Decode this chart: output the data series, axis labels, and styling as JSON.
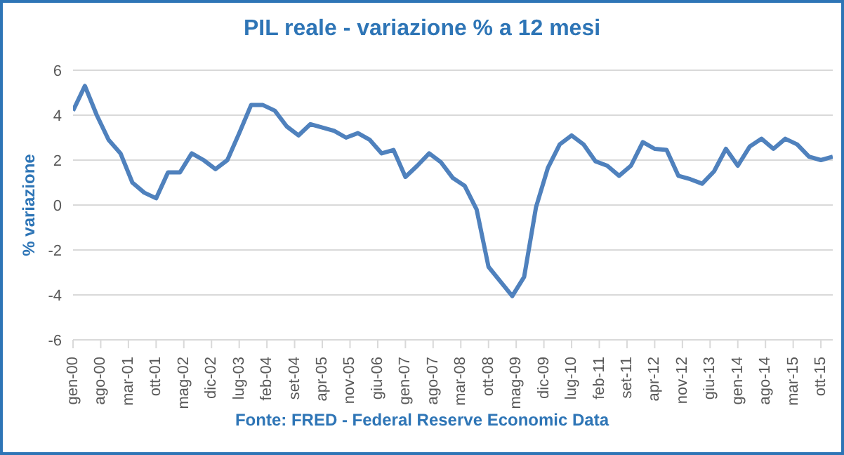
{
  "chart_data": {
    "type": "line",
    "title": "PIL reale - variazione % a 12 mesi",
    "ylabel": "% variazione",
    "annotations": [
      "Fonte: FRED  - Federal Reserve Economic  Data"
    ],
    "x": [
      "2000-01",
      "2000-04",
      "2000-07",
      "2000-10",
      "2001-01",
      "2001-04",
      "2001-07",
      "2001-10",
      "2002-01",
      "2002-04",
      "2002-07",
      "2002-10",
      "2003-01",
      "2003-04",
      "2003-07",
      "2003-10",
      "2004-01",
      "2004-04",
      "2004-07",
      "2004-10",
      "2005-01",
      "2005-04",
      "2005-07",
      "2005-10",
      "2006-01",
      "2006-04",
      "2006-07",
      "2006-10",
      "2007-01",
      "2007-04",
      "2007-07",
      "2007-10",
      "2008-01",
      "2008-04",
      "2008-07",
      "2008-10",
      "2009-01",
      "2009-04",
      "2009-07",
      "2009-10",
      "2010-01",
      "2010-04",
      "2010-07",
      "2010-10",
      "2011-01",
      "2011-04",
      "2011-07",
      "2011-10",
      "2012-01",
      "2012-04",
      "2012-07",
      "2012-10",
      "2013-01",
      "2013-04",
      "2013-07",
      "2013-10",
      "2014-01",
      "2014-04",
      "2014-07",
      "2014-10",
      "2015-01",
      "2015-04",
      "2015-07",
      "2015-10",
      "2016-01"
    ],
    "series": [
      {
        "color": "#4f81bd",
        "values": [
          4.2,
          5.3,
          4.0,
          2.9,
          2.3,
          1.0,
          0.55,
          0.3,
          1.45,
          1.45,
          2.3,
          2.0,
          1.6,
          2.0,
          3.2,
          4.45,
          4.45,
          4.2,
          3.5,
          3.1,
          3.6,
          3.45,
          3.3,
          3.0,
          3.2,
          2.9,
          2.3,
          2.45,
          1.25,
          1.75,
          2.3,
          1.9,
          1.2,
          0.85,
          -0.2,
          -2.75,
          -3.4,
          -4.05,
          -3.2,
          -0.1,
          1.65,
          2.7,
          3.1,
          2.7,
          1.95,
          1.75,
          1.3,
          1.75,
          2.8,
          2.5,
          2.45,
          1.3,
          1.15,
          0.95,
          1.5,
          2.5,
          1.75,
          2.6,
          2.95,
          2.5,
          2.95,
          2.7,
          2.15,
          2.0,
          2.15
        ]
      }
    ],
    "xlim": [
      "2000-01",
      "2016-01"
    ],
    "xticks": [
      {
        "value": "2000-01",
        "label": "gen-00"
      },
      {
        "value": "2000-08",
        "label": "ago-00"
      },
      {
        "value": "2001-03",
        "label": "mar-01"
      },
      {
        "value": "2001-10",
        "label": "ott-01"
      },
      {
        "value": "2002-05",
        "label": "mag-02"
      },
      {
        "value": "2002-12",
        "label": "dic-02"
      },
      {
        "value": "2003-07",
        "label": "lug-03"
      },
      {
        "value": "2004-02",
        "label": "feb-04"
      },
      {
        "value": "2004-09",
        "label": "set-04"
      },
      {
        "value": "2005-04",
        "label": "apr-05"
      },
      {
        "value": "2005-11",
        "label": "nov-05"
      },
      {
        "value": "2006-06",
        "label": "giu-06"
      },
      {
        "value": "2007-01",
        "label": "gen-07"
      },
      {
        "value": "2007-08",
        "label": "ago-07"
      },
      {
        "value": "2008-03",
        "label": "mar-08"
      },
      {
        "value": "2008-10",
        "label": "ott-08"
      },
      {
        "value": "2009-05",
        "label": "mag-09"
      },
      {
        "value": "2009-12",
        "label": "dic-09"
      },
      {
        "value": "2010-07",
        "label": "lug-10"
      },
      {
        "value": "2011-02",
        "label": "feb-11"
      },
      {
        "value": "2011-09",
        "label": "set-11"
      },
      {
        "value": "2012-04",
        "label": "apr-12"
      },
      {
        "value": "2012-11",
        "label": "nov-12"
      },
      {
        "value": "2013-06",
        "label": "giu-13"
      },
      {
        "value": "2014-01",
        "label": "gen-14"
      },
      {
        "value": "2014-08",
        "label": "ago-14"
      },
      {
        "value": "2015-03",
        "label": "mar-15"
      },
      {
        "value": "2015-10",
        "label": "ott-15"
      }
    ],
    "ylim": [
      -6,
      6
    ],
    "yticks": [
      -6,
      -4,
      -2,
      0,
      2,
      4,
      6
    ],
    "grid": "y",
    "legend": false,
    "marker": "none",
    "line_style": "solid"
  }
}
